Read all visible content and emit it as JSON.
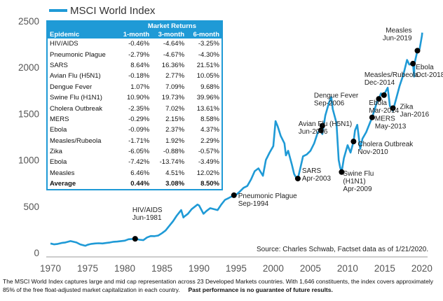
{
  "chart_data": {
    "type": "line",
    "title": "",
    "xlabel": "",
    "ylabel": "",
    "legend": {
      "label": "MSCI World Index",
      "position": "top-left"
    },
    "xlim": [
      1970,
      2020.2
    ],
    "ylim": [
      0,
      2500
    ],
    "grid": false,
    "line_color": "#1f9ad6",
    "marker_color": "#000000",
    "x_ticks": [
      {
        "v": 1970,
        "label": "1970"
      },
      {
        "v": 1975,
        "label": "1975"
      },
      {
        "v": 1980,
        "label": "1980"
      },
      {
        "v": 1985,
        "label": "1985"
      },
      {
        "v": 1990,
        "label": "1990"
      },
      {
        "v": 1995,
        "label": "1995"
      },
      {
        "v": 2000,
        "label": "2000"
      },
      {
        "v": 2005,
        "label": "2005"
      },
      {
        "v": 2010,
        "label": "2010"
      },
      {
        "v": 2015,
        "label": "2015"
      },
      {
        "v": 2020,
        "label": "2020"
      }
    ],
    "y_ticks": [
      {
        "v": 0,
        "label": "0"
      },
      {
        "v": 500,
        "label": "500"
      },
      {
        "v": 1000,
        "label": "1000"
      },
      {
        "v": 1500,
        "label": "1500"
      },
      {
        "v": 2000,
        "label": "2000"
      },
      {
        "v": 2500,
        "label": "2500"
      }
    ],
    "series": [
      {
        "name": "MSCI World Index",
        "points": [
          [
            1970,
            100
          ],
          [
            1970.5,
            90
          ],
          [
            1971,
            95
          ],
          [
            1971.5,
            105
          ],
          [
            1972,
            110
          ],
          [
            1972.7,
            125
          ],
          [
            1973,
            120
          ],
          [
            1973.5,
            110
          ],
          [
            1974,
            90
          ],
          [
            1974.7,
            75
          ],
          [
            1975,
            85
          ],
          [
            1975.5,
            95
          ],
          [
            1976,
            100
          ],
          [
            1976.5,
            102
          ],
          [
            1977,
            100
          ],
          [
            1977.5,
            105
          ],
          [
            1978,
            110
          ],
          [
            1978.5,
            118
          ],
          [
            1979,
            120
          ],
          [
            1979.5,
            125
          ],
          [
            1980,
            130
          ],
          [
            1980.5,
            145
          ],
          [
            1981,
            148
          ],
          [
            1981.4,
            150
          ],
          [
            1982,
            140
          ],
          [
            1982.5,
            135
          ],
          [
            1983,
            165
          ],
          [
            1983.5,
            180
          ],
          [
            1984,
            178
          ],
          [
            1984.5,
            185
          ],
          [
            1985,
            210
          ],
          [
            1985.5,
            240
          ],
          [
            1986,
            290
          ],
          [
            1986.5,
            340
          ],
          [
            1987,
            400
          ],
          [
            1987.6,
            460
          ],
          [
            1987.9,
            380
          ],
          [
            1988,
            390
          ],
          [
            1988.5,
            420
          ],
          [
            1989,
            470
          ],
          [
            1989.8,
            520
          ],
          [
            1990,
            510
          ],
          [
            1990.6,
            420
          ],
          [
            1991,
            450
          ],
          [
            1991.5,
            480
          ],
          [
            1992,
            470
          ],
          [
            1992.5,
            460
          ],
          [
            1993,
            520
          ],
          [
            1993.5,
            570
          ],
          [
            1994,
            590
          ],
          [
            1994.7,
            620
          ],
          [
            1995,
            625
          ],
          [
            1995.5,
            660
          ],
          [
            1996,
            700
          ],
          [
            1996.5,
            720
          ],
          [
            1997,
            790
          ],
          [
            1997.5,
            880
          ],
          [
            1998,
            910
          ],
          [
            1998.6,
            830
          ],
          [
            1999,
            1000
          ],
          [
            1999.5,
            1080
          ],
          [
            2000,
            1150
          ],
          [
            2000.3,
            1420
          ],
          [
            2000.6,
            1360
          ],
          [
            2001,
            1260
          ],
          [
            2001.5,
            1180
          ],
          [
            2001.7,
            1050
          ],
          [
            2002,
            1100
          ],
          [
            2002.5,
            950
          ],
          [
            2002.8,
            850
          ],
          [
            2003,
            820
          ],
          [
            2003.3,
            800
          ],
          [
            2003.6,
            900
          ],
          [
            2004,
            1040
          ],
          [
            2004.5,
            1060
          ],
          [
            2005,
            1100
          ],
          [
            2005.5,
            1180
          ],
          [
            2006,
            1300
          ],
          [
            2006.4,
            1320
          ],
          [
            2006.6,
            1280
          ],
          [
            2007,
            1480
          ],
          [
            2007.5,
            1620
          ],
          [
            2007.8,
            1680
          ],
          [
            2008,
            1550
          ],
          [
            2008.5,
            1400
          ],
          [
            2008.8,
            1000
          ],
          [
            2009,
            920
          ],
          [
            2009.2,
            870
          ],
          [
            2009.5,
            1020
          ],
          [
            2010,
            1160
          ],
          [
            2010.4,
            1080
          ],
          [
            2010.8,
            1200
          ],
          [
            2011,
            1320
          ],
          [
            2011.3,
            1380
          ],
          [
            2011.7,
            1120
          ],
          [
            2012,
            1230
          ],
          [
            2012.5,
            1300
          ],
          [
            2013,
            1400
          ],
          [
            2013.3,
            1460
          ],
          [
            2013.7,
            1560
          ],
          [
            2014,
            1640
          ],
          [
            2014.2,
            1660
          ],
          [
            2014.5,
            1720
          ],
          [
            2014.8,
            1690
          ],
          [
            2015,
            1720
          ],
          [
            2015.4,
            1780
          ],
          [
            2015.7,
            1580
          ],
          [
            2016,
            1560
          ],
          [
            2016.1,
            1530
          ],
          [
            2016.5,
            1650
          ],
          [
            2017,
            1800
          ],
          [
            2017.5,
            1920
          ],
          [
            2018,
            2080
          ],
          [
            2018.3,
            2030
          ],
          [
            2018.8,
            2040
          ],
          [
            2018.95,
            1900
          ],
          [
            2019,
            2040
          ],
          [
            2019.4,
            2180
          ],
          [
            2019.7,
            2200
          ],
          [
            2020,
            2340
          ],
          [
            2020.05,
            2375
          ]
        ]
      }
    ],
    "annotations": [
      {
        "label": "HIV/AIDS\nJun-1981",
        "x": 1981.4,
        "y": 150
      },
      {
        "label": "Pneumonic Plague\nSep-1994",
        "x": 1994.7,
        "y": 620
      },
      {
        "label": "SARS\nApr-2003",
        "x": 2003.3,
        "y": 800
      },
      {
        "label": "Dengue Fever\nSep-2006",
        "x": 2006.6,
        "y": 1370
      },
      {
        "label": "Avian Flu (H5N1)\nJun-2006",
        "x": 2006.4,
        "y": 1320
      },
      {
        "label": "Swine Flu\n(H1N1)\nApr-2009",
        "x": 2009.2,
        "y": 870
      },
      {
        "label": "Cholera Outbreak\nNov-2010",
        "x": 2010.8,
        "y": 1200
      },
      {
        "label": "MERS\nMay-2013",
        "x": 2013.3,
        "y": 1460
      },
      {
        "label": "Ebola\nMar-2014",
        "x": 2014.2,
        "y": 1660
      },
      {
        "label": "Measles/Rubeola\nDec-2014",
        "x": 2014.9,
        "y": 1700
      },
      {
        "label": "Zika\nJan-2016",
        "x": 2016.1,
        "y": 1560
      },
      {
        "label": "Ebola\nOct-2018",
        "x": 2018.8,
        "y": 2040
      },
      {
        "label": "Measles\nJun-2019",
        "x": 2019.4,
        "y": 2180
      }
    ],
    "source": "Source: Charles Schwab, Factset data as of 1/21/2020."
  },
  "table": {
    "group_header": "Market Returns",
    "columns": [
      "Epidemic",
      "1-month",
      "3-month",
      "6-month"
    ],
    "rows": [
      [
        "HIV/AIDS",
        "-0.46%",
        "-4.64%",
        "-3.25%"
      ],
      [
        "Pneumonic Plague",
        "-2.79%",
        "-4.67%",
        "-4.30%"
      ],
      [
        "SARS",
        "8.64%",
        "16.36%",
        "21.51%"
      ],
      [
        "Avian Flu (H5N1)",
        "-0.18%",
        "2.77%",
        "10.05%"
      ],
      [
        "Dengue Fever",
        "1.07%",
        "7.09%",
        "9.68%"
      ],
      [
        "Swine Flu (H1N1)",
        "10.90%",
        "19.73%",
        "39.96%"
      ],
      [
        "Cholera Outbreak",
        "-2.35%",
        "7.02%",
        "13.61%"
      ],
      [
        "MERS",
        "-0.29%",
        "2.15%",
        "8.58%"
      ],
      [
        "Ebola",
        "-0.09%",
        "2.37%",
        "4.37%"
      ],
      [
        "Measles/Rubeola",
        "-1.71%",
        "1.92%",
        "2.29%"
      ],
      [
        "Zika",
        "-6.05%",
        "-0.88%",
        "-0.57%"
      ],
      [
        "Ebola",
        "-7.42%",
        "-13.74%",
        "-3.49%"
      ],
      [
        "Measles",
        "6.46%",
        "4.51%",
        "12.02%"
      ]
    ],
    "average": [
      "Average",
      "0.44%",
      "3.08%",
      "8.50%"
    ]
  },
  "footer": {
    "text": "The MSCI World Index captures large and mid cap representation across 23 Developed Markets countries. With 1,646 constituents, the index covers approximately 85% of the free float-adjusted market capitalization in each country.",
    "bold": "Past performance is no guarantee of future results."
  }
}
